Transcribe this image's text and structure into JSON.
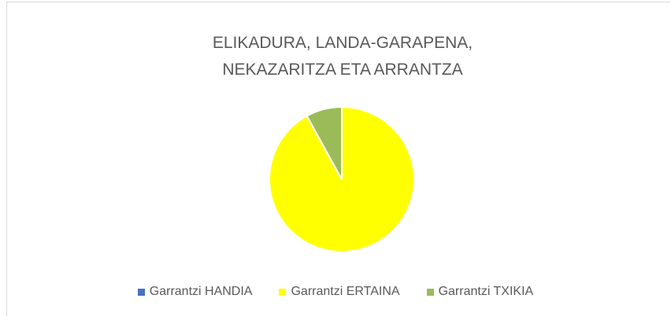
{
  "chart_data": {
    "type": "pie",
    "title": "ELIKADURA, LANDA-GARAPENA, NEKAZARITZA ETA ARRANTZA",
    "categories": [
      "Garrantzi HANDIA",
      "Garrantzi ERTAINA",
      "Garrantzi TXIKIA"
    ],
    "values": [
      0,
      92,
      8
    ],
    "colors": [
      "#4472c4",
      "#ffff00",
      "#9bbb59"
    ],
    "legend": "bottom"
  }
}
